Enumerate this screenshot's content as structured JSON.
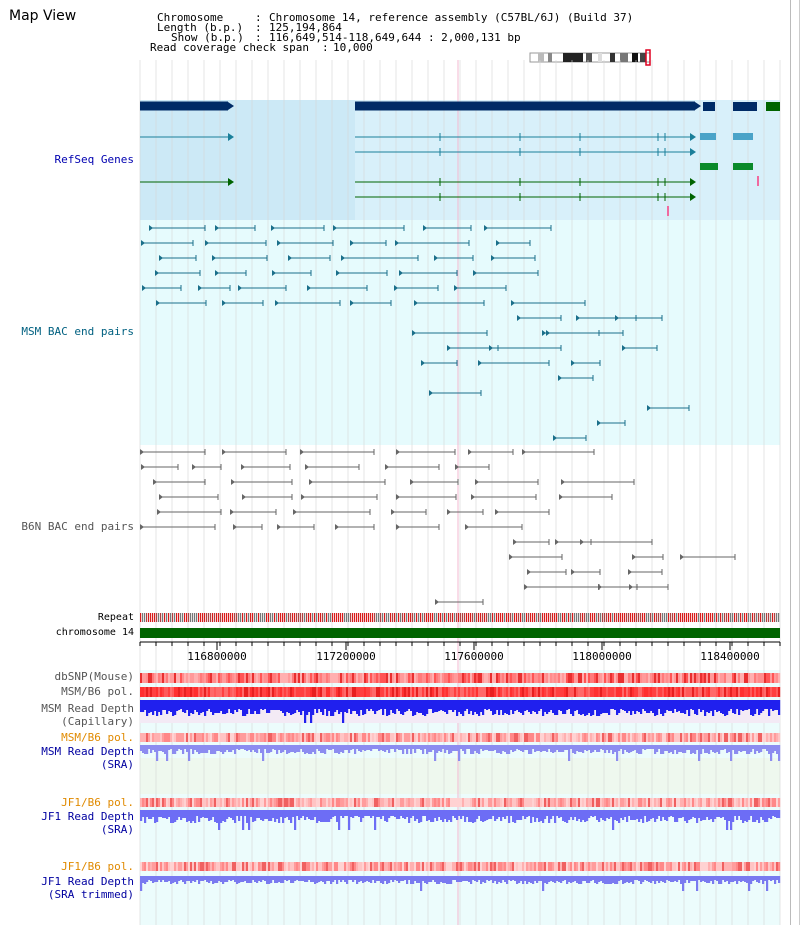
{
  "window": {
    "title": "Map View"
  },
  "info": {
    "chromosome_key": "Chromosome",
    "chromosome_val": "Chromosome 14, reference assembly (C57BL/6J) (Build 37)",
    "length_key": "Length (b.p.)",
    "length_val": "125,194,864",
    "show_key": "Show (b.p.)",
    "show_val": "116,649,514-118,649,644 : 2,000,131 bp",
    "span_key": "Read coverage check span",
    "span_val": "10,000"
  },
  "tracks": {
    "refseq": "RefSeq Genes",
    "msm_bac": "MSM BAC end pairs",
    "b6n_bac": "B6N BAC end pairs",
    "repeat": "Repeat",
    "chromosome": "chromosome 14",
    "dbsnp": "dbSNP(Mouse)",
    "msm_b6_pol": "MSM/B6 pol.",
    "msm_depth_cap_1": "MSM Read Depth",
    "msm_depth_cap_2": "(Capillary)",
    "msm_b6_pol_sra": "MSM/B6 pol.",
    "msm_depth_sra_1": "MSM Read Depth",
    "msm_depth_sra_2": "(SRA)",
    "jf1_pol_1": "JF1/B6 pol.",
    "jf1_depth_1": "JF1 Read Depth",
    "jf1_depth_1b": "(SRA)",
    "jf1_pol_2": "JF1/B6 pol.",
    "jf1_depth_2": "JF1 Read Depth",
    "jf1_depth_2b": "(SRA trimmed)"
  },
  "axis": {
    "ticks": [
      "116800000",
      "117200000",
      "117600000",
      "118000000",
      "118400000"
    ]
  },
  "colors": {
    "refseq_label": "#0000b0",
    "msm_label": "#006080",
    "b6n_label": "#555555",
    "orange_label": "#e08a00",
    "blue_label": "#0000a0",
    "gene_dark": "#002b66",
    "gene_teal": "#1a7f9a",
    "gene_green": "#006400",
    "chromosome_bar": "#006400"
  }
}
